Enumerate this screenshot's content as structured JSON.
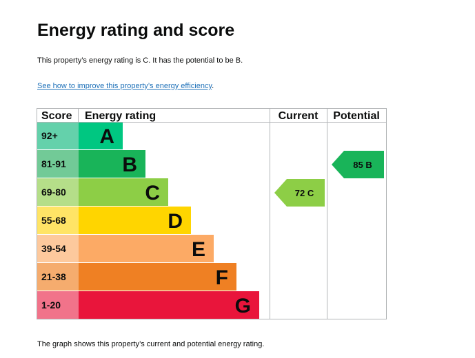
{
  "page": {
    "title": "Energy rating and score",
    "intro": "This property’s energy rating is C. It has the potential to be B.",
    "link_text": "See how to improve this property’s energy efficiency",
    "link_suffix": ".",
    "footer": "The graph shows this property’s current and potential energy rating."
  },
  "chart_data": {
    "type": "bar",
    "headers": {
      "score": "Score",
      "rating": "Energy rating",
      "current": "Current",
      "potential": "Potential"
    },
    "bands": [
      {
        "letter": "A",
        "range": "92+",
        "color": "#00c781",
        "score_bg": "#64d1ab"
      },
      {
        "letter": "B",
        "range": "81-91",
        "color": "#19b459",
        "score_bg": "#72ca97"
      },
      {
        "letter": "C",
        "range": "69-80",
        "color": "#8dce46",
        "score_bg": "#b5de89"
      },
      {
        "letter": "D",
        "range": "55-68",
        "color": "#ffd500",
        "score_bg": "#ffe466"
      },
      {
        "letter": "E",
        "range": "39-54",
        "color": "#fcaa65",
        "score_bg": "#fdc99d"
      },
      {
        "letter": "F",
        "range": "21-38",
        "color": "#ef8023",
        "score_bg": "#f5ac6e"
      },
      {
        "letter": "G",
        "range": "1-20",
        "color": "#e9153b",
        "score_bg": "#f1738a"
      }
    ],
    "current": {
      "score": 72,
      "rating": "C",
      "label": "72  C",
      "color": "#8dce46"
    },
    "potential": {
      "score": 85,
      "rating": "B",
      "label": "85  B",
      "color": "#19b459"
    }
  }
}
